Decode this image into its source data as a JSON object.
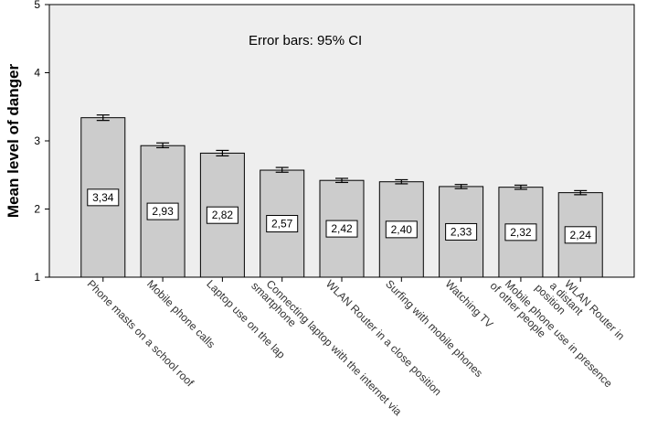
{
  "chart_data": {
    "type": "bar",
    "ylabel": "Mean level of danger",
    "annotation": "Error bars: 95% CI",
    "ylim": [
      1,
      5
    ],
    "yticks": [
      "1",
      "2",
      "3",
      "4",
      "5"
    ],
    "grid": false,
    "categories": [
      [
        "Phone masts on a school roof"
      ],
      [
        "Mobile phone calls"
      ],
      [
        "Laptop use on the lap"
      ],
      [
        "Connecting laptop with the internet via",
        "smartphone"
      ],
      [
        "WLAN Router in a close position"
      ],
      [
        "Surfing with mobile phones"
      ],
      [
        "Watching TV"
      ],
      [
        "Mobile phone use in presence",
        "of other people"
      ],
      [
        "WLAN Router in",
        "a distant",
        "position"
      ]
    ],
    "values": [
      3.34,
      2.93,
      2.82,
      2.57,
      2.42,
      2.4,
      2.33,
      2.32,
      2.24
    ],
    "value_labels": [
      "3,34",
      "2,93",
      "2,82",
      "2,57",
      "2,42",
      "2,40",
      "2,33",
      "2,32",
      "2,24"
    ],
    "ci_low": [
      3.3,
      2.9,
      2.78,
      2.54,
      2.39,
      2.37,
      2.3,
      2.29,
      2.21
    ],
    "ci_high": [
      3.38,
      2.97,
      2.86,
      2.61,
      2.45,
      2.43,
      2.36,
      2.35,
      2.27
    ],
    "colors": {
      "bar": "#cccccc",
      "plot_background": "#eeeeee"
    }
  }
}
